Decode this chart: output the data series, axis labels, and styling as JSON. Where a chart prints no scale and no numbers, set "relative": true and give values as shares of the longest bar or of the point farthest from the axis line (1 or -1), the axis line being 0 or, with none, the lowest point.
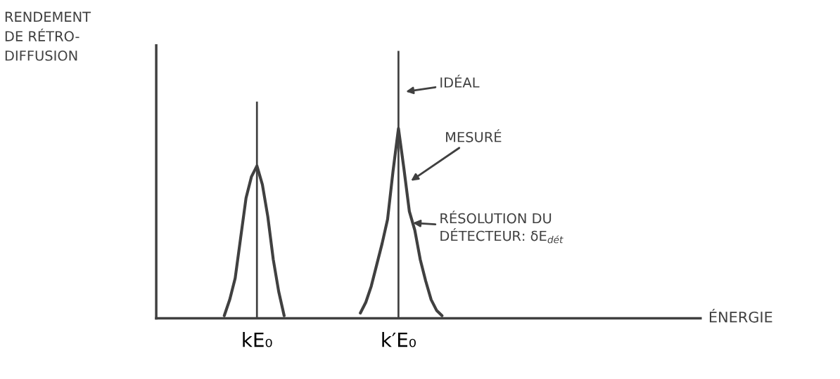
{
  "chart_data": {
    "type": "line",
    "relative": true,
    "ylabel": "RENDEMENT\nDE RÉTRO-\nDIFFUSION",
    "xlabel": "ÉNERGIE",
    "categories": [
      null,
      null,
      null,
      null,
      null,
      null,
      null,
      null,
      null,
      null,
      null,
      null,
      null,
      null,
      null,
      null,
      null,
      null,
      "kE₀",
      null,
      null,
      null,
      null,
      null,
      null,
      null,
      null,
      null,
      null,
      null,
      null,
      null,
      null,
      null,
      null,
      null,
      null,
      null,
      null,
      null,
      null,
      null,
      null,
      null,
      "k′E₀",
      null,
      null,
      null,
      null,
      null,
      null,
      null,
      null,
      null,
      null,
      null,
      null,
      null,
      null,
      null,
      null,
      null,
      null,
      null,
      null,
      null,
      null,
      null,
      null,
      null,
      null,
      null,
      null,
      null,
      null,
      null,
      null,
      null,
      null,
      null,
      null,
      null,
      null,
      null,
      null,
      null,
      null,
      null,
      null,
      null,
      null,
      null,
      null,
      null,
      null,
      null,
      null,
      null,
      null,
      null
    ],
    "series": [
      {
        "type": "bar",
        "color": "#404040",
        "values": [
          null,
          null,
          null,
          null,
          null,
          null,
          null,
          null,
          null,
          null,
          null,
          null,
          null,
          null,
          null,
          null,
          null,
          null,
          0.81,
          null,
          null,
          null,
          null,
          null,
          null,
          null,
          null,
          null,
          null,
          null,
          null,
          null,
          null,
          null,
          null,
          null,
          null,
          null,
          null,
          null,
          null,
          null,
          null,
          null,
          1,
          null,
          null,
          null,
          null,
          null,
          null,
          null,
          null,
          null,
          null,
          null,
          null,
          null,
          null,
          null,
          null,
          null,
          null,
          null,
          null,
          null,
          null,
          null,
          null,
          null,
          null,
          null,
          null,
          null,
          null,
          null,
          null,
          null,
          null,
          null,
          null,
          null,
          null,
          null,
          null,
          null,
          null,
          null,
          null,
          null,
          null,
          null,
          null,
          null,
          null,
          null,
          null,
          null,
          null,
          null
        ]
      },
      {
        "color": "#404040",
        "values": [
          null,
          null,
          null,
          null,
          null,
          null,
          null,
          null,
          null,
          null,
          null,
          null,
          0.01,
          0.07,
          0.15,
          0.3,
          0.45,
          0.53,
          0.57,
          0.5,
          0.38,
          0.22,
          0.1,
          0.01,
          null,
          null,
          null,
          null,
          null,
          null,
          null,
          null,
          null,
          null,
          null,
          null,
          null,
          0.02,
          0.06,
          0.12,
          0.2,
          0.28,
          0.37,
          0.55,
          0.71,
          0.56,
          0.4,
          0.33,
          0.22,
          0.14,
          0.07,
          0.03,
          0.01,
          null,
          null,
          null,
          null,
          null,
          null,
          null,
          null,
          null,
          null,
          null,
          null,
          null,
          null,
          null,
          null,
          null,
          null,
          null,
          null,
          null,
          null,
          null,
          null,
          null,
          null,
          null,
          null,
          null,
          null,
          null,
          null,
          null,
          null,
          null,
          null,
          null,
          null,
          null,
          null,
          null,
          null,
          null,
          null,
          null,
          null,
          null
        ]
      }
    ],
    "annotations": [
      "IDÉAL",
      "MESURÉ",
      "RÉSOLUTION DU\nDÉTECTEUR: δE$_{dét}$"
    ],
    "line_style": "solid"
  }
}
